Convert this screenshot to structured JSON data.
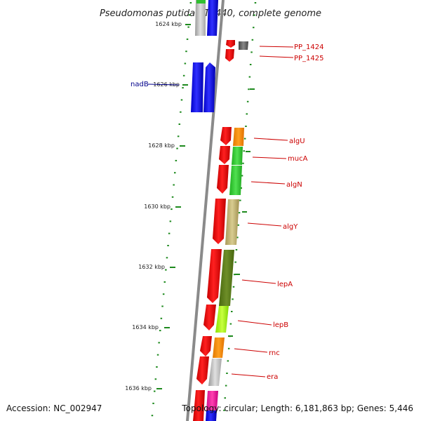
{
  "title": "Pseudomonas putida KT2440, complete genome",
  "accession": "Accession: NC_002947",
  "topology": "Topology: circular; Length: 6,181,863 bp; Genes: 5,446",
  "colors": {
    "backbone": "#888888",
    "tick": "#1e8a1e",
    "label_red": "#cc0000",
    "label_blue": "#00008b"
  },
  "scale_labels": [
    "1624 kbp",
    "1626 kbp",
    "1628 kbp",
    "1630 kbp",
    "1632 kbp",
    "1634 kbp",
    "1636 kbp"
  ],
  "gene_labels": [
    {
      "name": "PP_1424",
      "color": "#cc0000"
    },
    {
      "name": "PP_1425",
      "color": "#cc0000"
    },
    {
      "name": "algU",
      "color": "#cc0000"
    },
    {
      "name": "mucA",
      "color": "#cc0000"
    },
    {
      "name": "algN",
      "color": "#cc0000"
    },
    {
      "name": "algY",
      "color": "#cc0000"
    },
    {
      "name": "lepA",
      "color": "#cc0000"
    },
    {
      "name": "lepB",
      "color": "#cc0000"
    },
    {
      "name": "rnc",
      "color": "#cc0000"
    },
    {
      "name": "era",
      "color": "#cc0000"
    },
    {
      "name": "nadB",
      "color": "#00008b"
    }
  ]
}
